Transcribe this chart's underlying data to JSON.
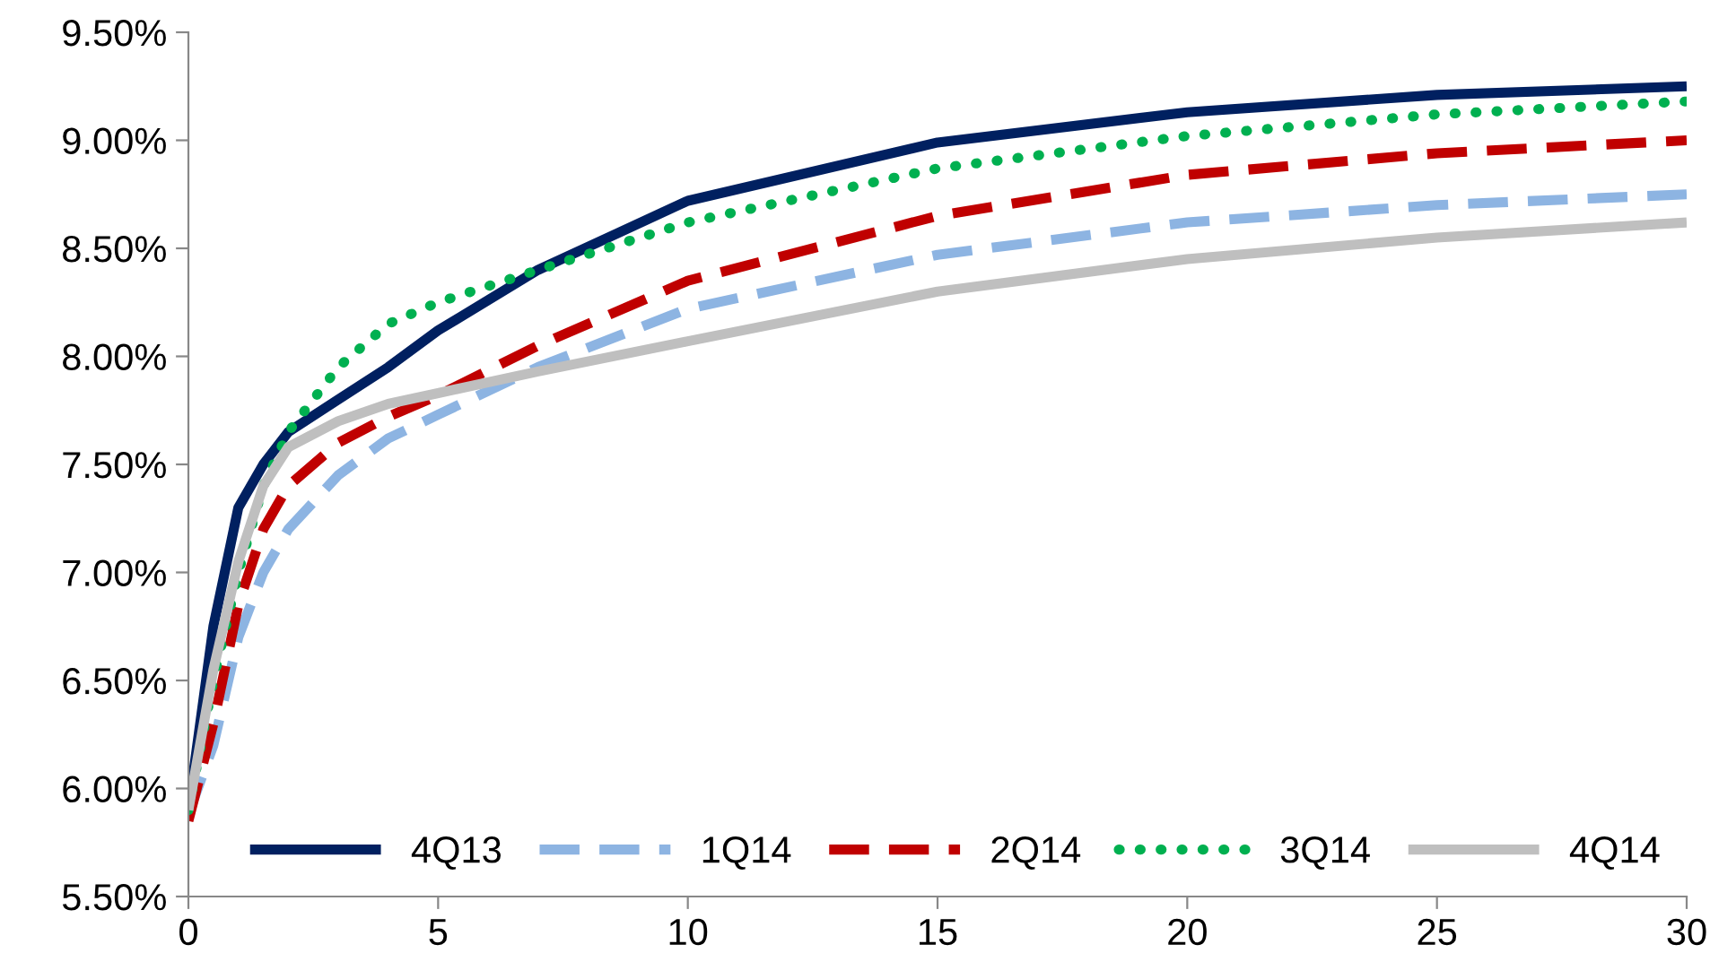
{
  "chart_data": {
    "type": "line",
    "x": [
      0,
      0.5,
      1,
      1.5,
      2,
      3,
      4,
      5,
      7,
      10,
      15,
      20,
      25,
      30
    ],
    "series": [
      {
        "name": "4Q13",
        "color": "#002060",
        "line_style": "solid",
        "values": [
          5.9,
          6.75,
          7.3,
          7.5,
          7.65,
          7.8,
          7.95,
          8.12,
          8.4,
          8.72,
          8.99,
          9.13,
          9.21,
          9.25
        ]
      },
      {
        "name": "1Q14",
        "color": "#8db4e2",
        "line_style": "dashed",
        "values": [
          5.88,
          6.2,
          6.7,
          7.0,
          7.2,
          7.45,
          7.62,
          7.73,
          7.95,
          8.22,
          8.47,
          8.62,
          8.7,
          8.75
        ]
      },
      {
        "name": "2Q14",
        "color": "#c00000",
        "line_style": "dashed",
        "values": [
          5.85,
          6.3,
          6.85,
          7.2,
          7.4,
          7.6,
          7.72,
          7.82,
          8.05,
          8.35,
          8.65,
          8.84,
          8.94,
          9.0
        ]
      },
      {
        "name": "3Q14",
        "color": "#00b050",
        "line_style": "dotted",
        "values": [
          5.9,
          6.5,
          7.0,
          7.4,
          7.65,
          7.95,
          8.15,
          8.25,
          8.4,
          8.62,
          8.87,
          9.02,
          9.12,
          9.18
        ]
      },
      {
        "name": "4Q14",
        "color": "#bfbfbf",
        "line_style": "solid",
        "values": [
          5.9,
          6.55,
          7.05,
          7.4,
          7.58,
          7.7,
          7.78,
          7.83,
          7.93,
          8.07,
          8.3,
          8.45,
          8.55,
          8.62
        ]
      }
    ],
    "xlim": [
      0,
      30
    ],
    "xticks": [
      0,
      5,
      10,
      15,
      20,
      25,
      30
    ],
    "ylim": [
      5.5,
      9.5
    ],
    "yticks": [
      {
        "value": 5.5,
        "label": "5.50%"
      },
      {
        "value": 6.0,
        "label": "6.00%"
      },
      {
        "value": 6.5,
        "label": "6.50%"
      },
      {
        "value": 7.0,
        "label": "7.00%"
      },
      {
        "value": 7.5,
        "label": "7.50%"
      },
      {
        "value": 8.0,
        "label": "8.00%"
      },
      {
        "value": 8.5,
        "label": "8.50%"
      },
      {
        "value": 9.0,
        "label": "9.00%"
      },
      {
        "value": 9.5,
        "label": "9.50%"
      }
    ],
    "grid": false,
    "legend": "bottom right",
    "marker": "none"
  }
}
